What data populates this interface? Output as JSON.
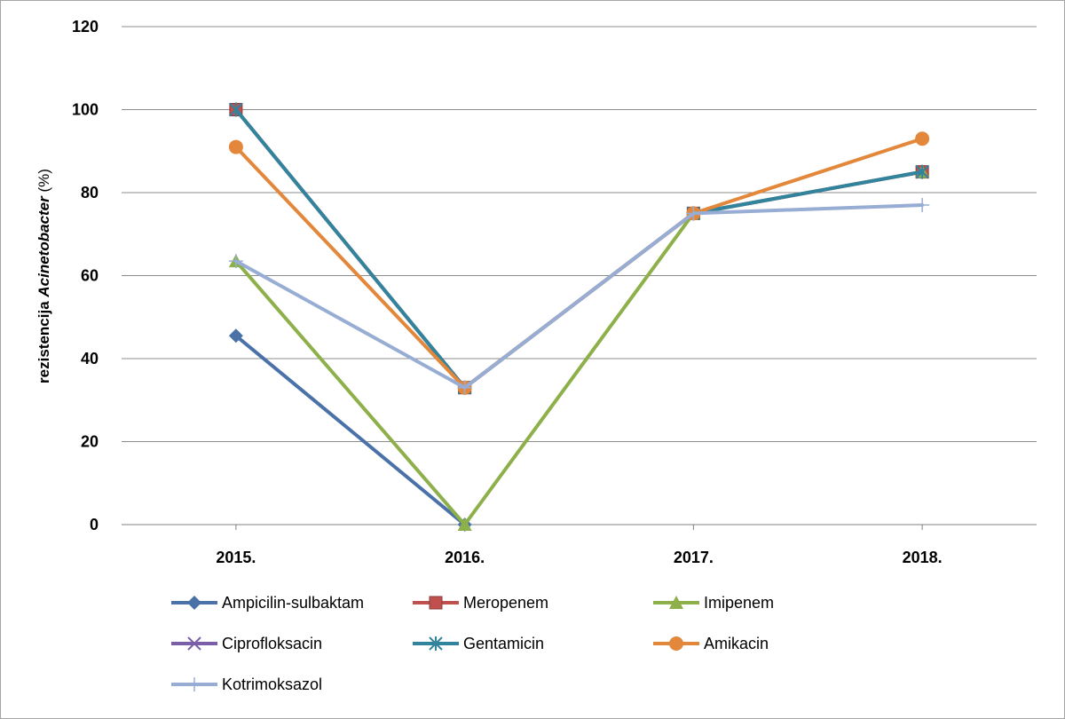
{
  "chart_data": {
    "type": "line",
    "title": "",
    "ylabel_parts": [
      "rezistencija ",
      "Acinetobacter",
      " (%)"
    ],
    "xlabel": "",
    "categories": [
      "2015.",
      "2016.",
      "2017.",
      "2018."
    ],
    "ylim": [
      0,
      120
    ],
    "yticks": [
      0,
      20,
      40,
      60,
      80,
      100,
      120
    ],
    "grid": true,
    "legend_position": "bottom",
    "series": [
      {
        "name": "Ampicilin-sulbaktam",
        "color": "#4a72a8",
        "marker": "diamond",
        "values": [
          45.5,
          0,
          null,
          null
        ]
      },
      {
        "name": "Meropenem",
        "color": "#c0504d",
        "marker": "square",
        "values": [
          100,
          33,
          75,
          85
        ]
      },
      {
        "name": "Imipenem",
        "color": "#8db04a",
        "marker": "triangle",
        "values": [
          63.5,
          0,
          75,
          85
        ]
      },
      {
        "name": "Ciprofloksacin",
        "color": "#7b5ea8",
        "marker": "x",
        "values": [
          100,
          33,
          75,
          85
        ]
      },
      {
        "name": "Gentamicin",
        "color": "#31849b",
        "marker": "star",
        "values": [
          100,
          33,
          75,
          85
        ]
      },
      {
        "name": "Amikacin",
        "color": "#e3873b",
        "marker": "circle",
        "values": [
          91,
          33,
          75,
          93
        ]
      },
      {
        "name": "Kotrimoksazol",
        "color": "#97add4",
        "marker": "plus",
        "values": [
          63.5,
          33,
          75,
          77
        ]
      }
    ]
  }
}
